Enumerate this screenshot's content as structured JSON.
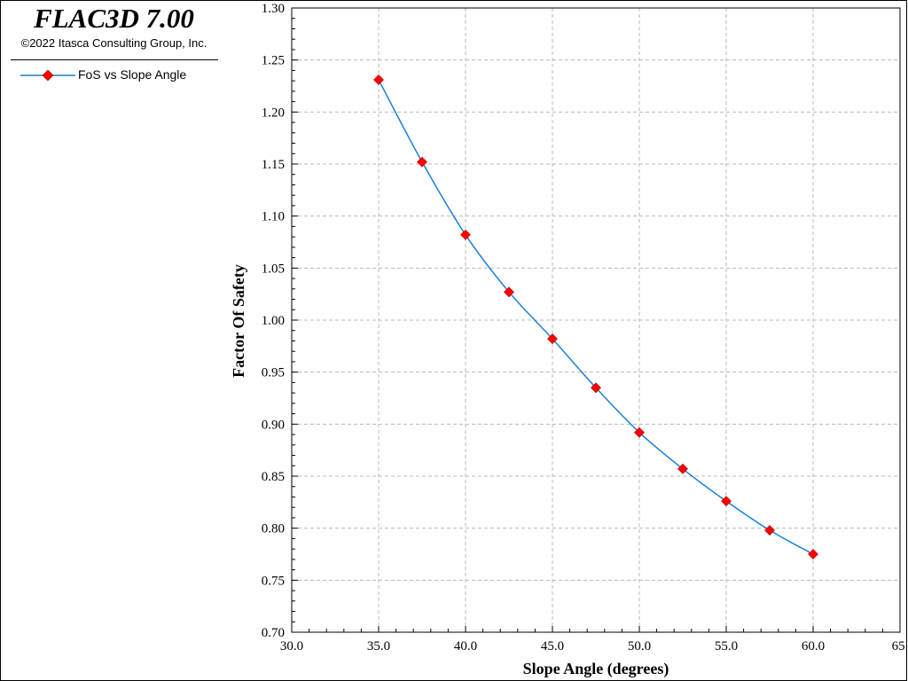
{
  "app": {
    "title": "FLAC3D 7.00",
    "copyright": "©2022 Itasca Consulting Group, Inc."
  },
  "legend": {
    "label": "FoS vs Slope Angle",
    "line_color": "#1b7fd8",
    "marker_color": "#ff0000",
    "marker_icon": "diamond-marker-icon"
  },
  "chart_data": {
    "type": "line",
    "xlabel": "Slope Angle (degrees)",
    "ylabel": "Factor Of Safety",
    "xlim": [
      30,
      65
    ],
    "ylim": [
      0.7,
      1.3
    ],
    "grid": true,
    "legend_placement": "left-panel",
    "x_ticks": [
      "30.0",
      "35.0",
      "40.0",
      "45.0",
      "50.0",
      "55.0",
      "60.0",
      "65."
    ],
    "y_ticks": [
      "0.70",
      "0.75",
      "0.80",
      "0.85",
      "0.90",
      "0.95",
      "1.00",
      "1.05",
      "1.10",
      "1.15",
      "1.20",
      "1.25",
      "1.30"
    ],
    "series": [
      {
        "name": "FoS vs Slope Angle",
        "x": [
          35.0,
          37.5,
          40.0,
          42.5,
          45.0,
          47.5,
          50.0,
          52.5,
          55.0,
          57.5,
          60.0
        ],
        "y": [
          1.231,
          1.152,
          1.082,
          1.027,
          0.982,
          0.935,
          0.892,
          0.857,
          0.826,
          0.798,
          0.775
        ]
      }
    ]
  }
}
